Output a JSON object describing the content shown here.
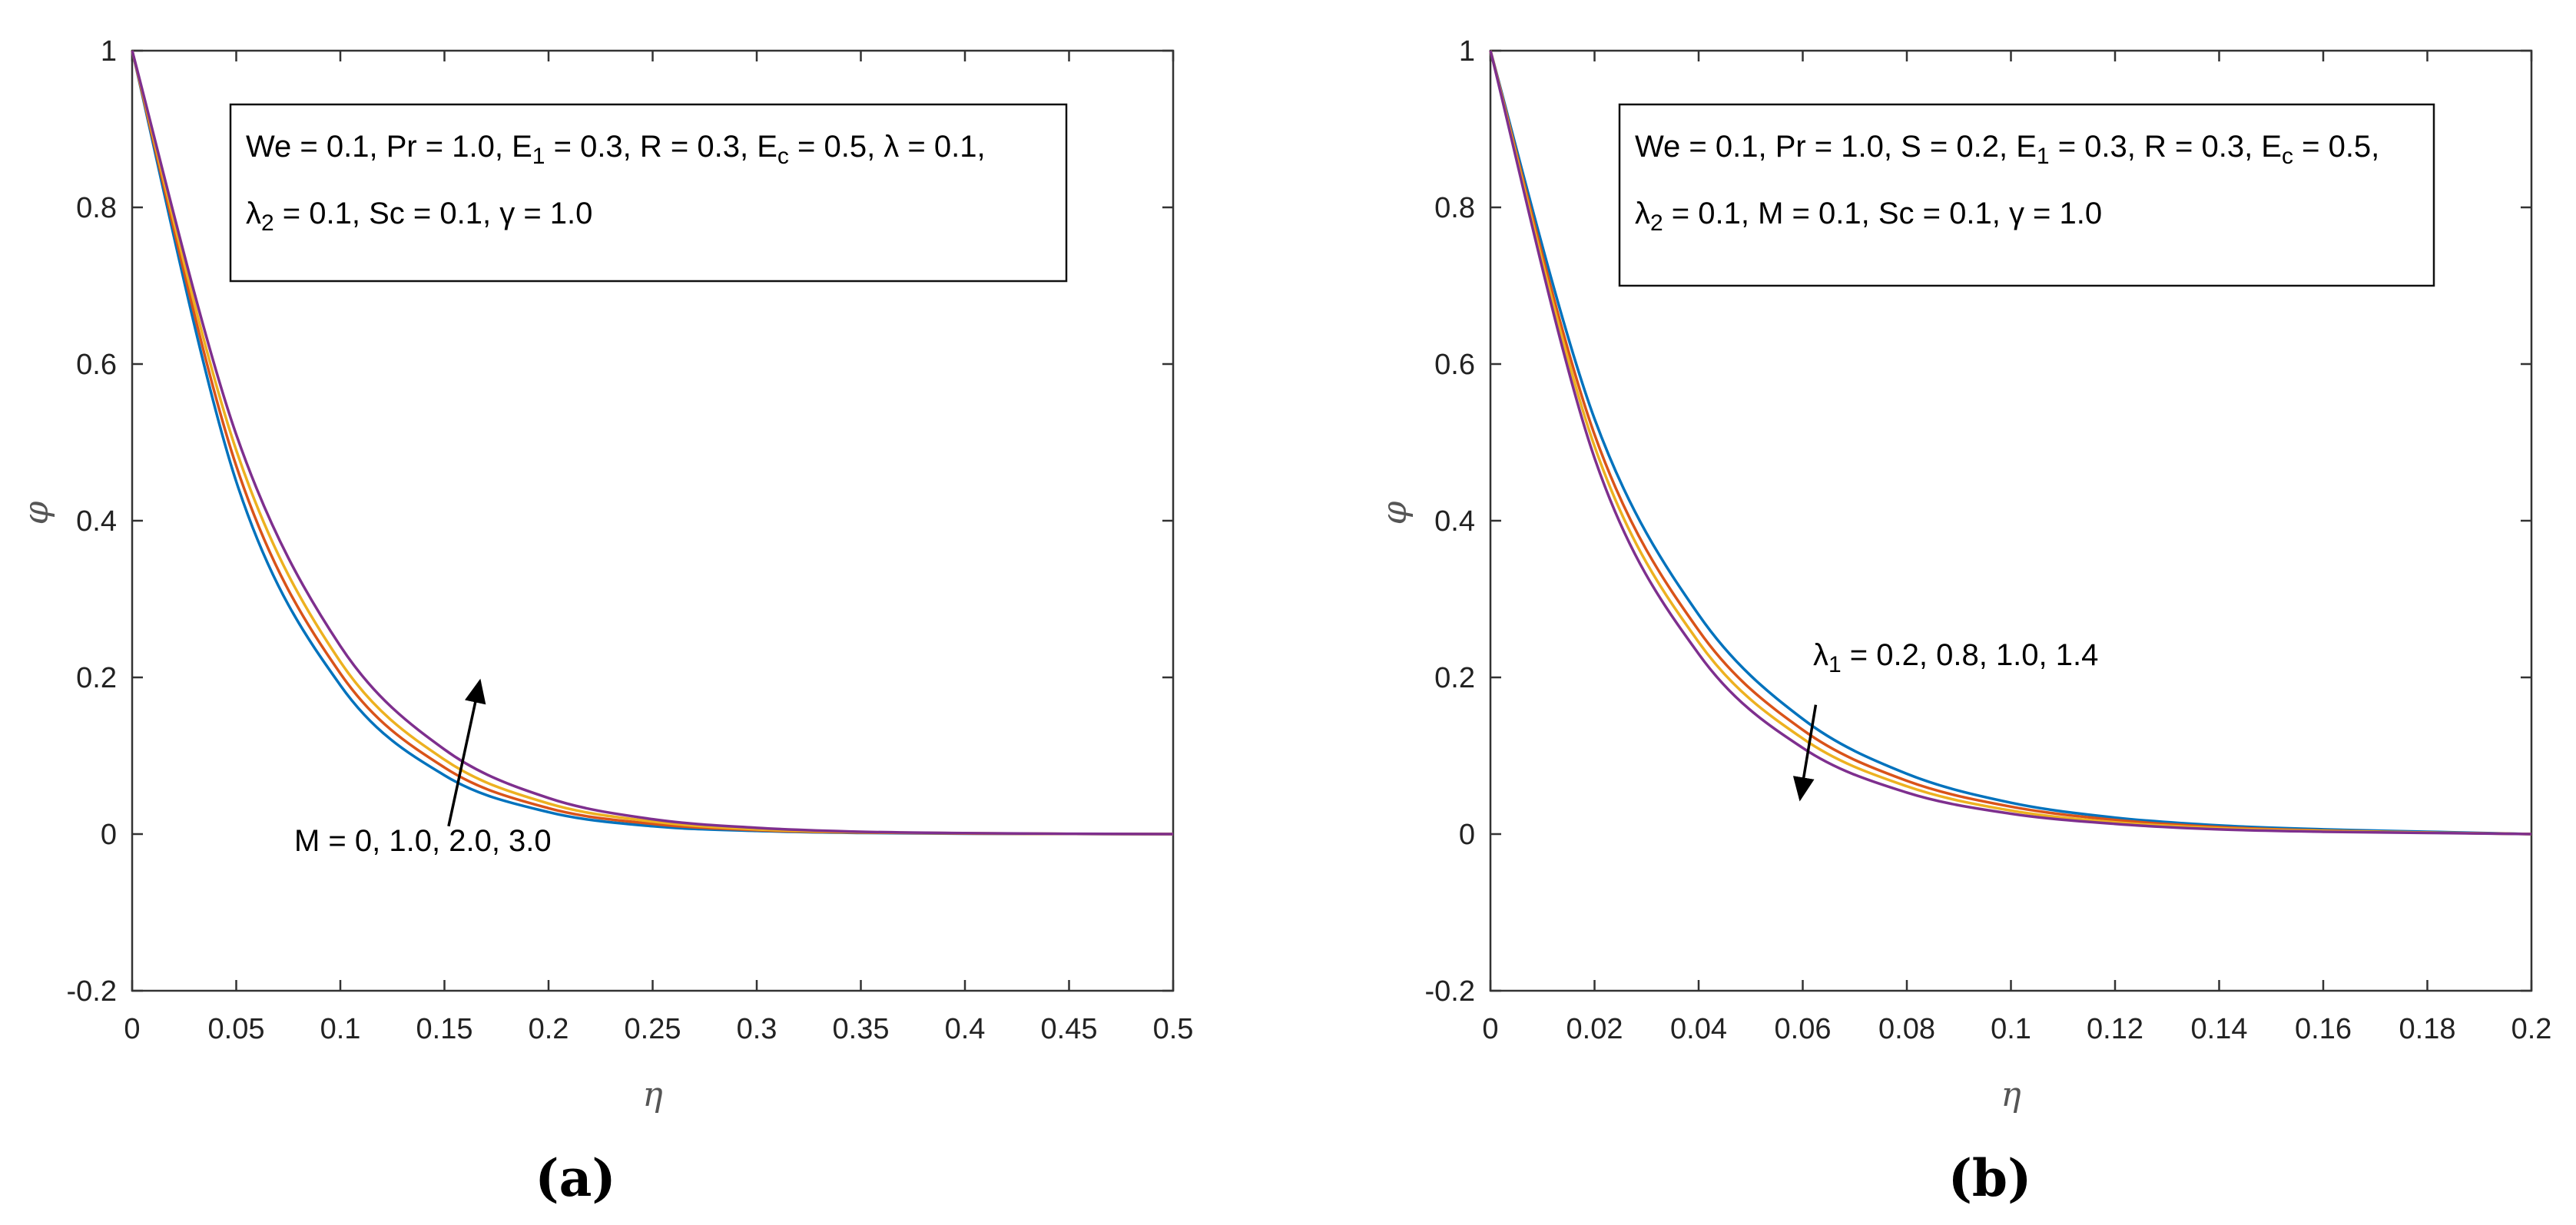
{
  "chart_data": [
    {
      "type": "line",
      "caption": "(a)",
      "xlabel": "η",
      "ylabel": "φ",
      "xlim": [
        0,
        0.5
      ],
      "ylim": [
        -0.2,
        1
      ],
      "xticks": [
        0,
        0.05,
        0.1,
        0.15,
        0.2,
        0.25,
        0.3,
        0.35,
        0.4,
        0.45,
        0.5
      ],
      "xtick_labels": [
        "0",
        "0.05",
        "0.1",
        "0.15",
        "0.2",
        "0.25",
        "0.3",
        "0.35",
        "0.4",
        "0.45",
        "0.5"
      ],
      "yticks": [
        -0.2,
        0,
        0.2,
        0.4,
        0.6,
        0.8,
        1
      ],
      "ytick_labels": [
        "-0.2",
        "0",
        "0.2",
        "0.4",
        "0.6",
        "0.8",
        "1"
      ],
      "x": [
        0,
        0.05,
        0.1,
        0.15,
        0.2,
        0.25,
        0.3,
        0.35,
        0.4,
        0.45,
        0.5
      ],
      "series": [
        {
          "color": "#0072BD",
          "values": [
            1.0,
            0.45,
            0.19,
            0.075,
            0.028,
            0.01,
            0.004,
            0.0015,
            0.0005,
            0.0002,
            0.0
          ]
        },
        {
          "color": "#D95319",
          "values": [
            1.0,
            0.47,
            0.205,
            0.085,
            0.033,
            0.013,
            0.005,
            0.002,
            0.0007,
            0.0002,
            0.0
          ]
        },
        {
          "color": "#EDB120",
          "values": [
            1.0,
            0.49,
            0.22,
            0.095,
            0.039,
            0.016,
            0.006,
            0.0025,
            0.001,
            0.0003,
            0.0
          ]
        },
        {
          "color": "#7E2F8E",
          "values": [
            1.0,
            0.51,
            0.24,
            0.108,
            0.046,
            0.019,
            0.008,
            0.003,
            0.0012,
            0.0004,
            0.0
          ]
        }
      ],
      "legend_box": {
        "line1": [
          {
            "t": "We = 0.1, Pr = 1.0, E"
          },
          {
            "t": "1",
            "sub": true
          },
          {
            "t": " = 0.3, R = 0.3, E"
          },
          {
            "t": "c",
            "sub": true
          },
          {
            "t": " = 0.5, λ = 0.1,"
          }
        ],
        "line2": [
          {
            "t": "λ"
          },
          {
            "t": "2",
            "sub": true
          },
          {
            "t": " = 0.1, Sc = 0.1, γ = 1.0"
          }
        ]
      },
      "annotation": {
        "parts": [
          {
            "t": "M = 0, 1.0, 2.0, 3.0"
          }
        ],
        "arrow_from": [
          0.152,
          0.01
        ],
        "arrow_to": [
          0.167,
          0.195
        ]
      }
    },
    {
      "type": "line",
      "caption": "(b)",
      "xlabel": "η",
      "ylabel": "φ",
      "xlim": [
        0,
        0.2
      ],
      "ylim": [
        -0.2,
        1
      ],
      "xticks": [
        0,
        0.02,
        0.04,
        0.06,
        0.08,
        0.1,
        0.12,
        0.14,
        0.16,
        0.18,
        0.2
      ],
      "xtick_labels": [
        "0",
        "0.02",
        "0.04",
        "0.06",
        "0.08",
        "0.1",
        "0.12",
        "0.14",
        "0.16",
        "0.18",
        "0.2"
      ],
      "yticks": [
        -0.2,
        0,
        0.2,
        0.4,
        0.6,
        0.8,
        1
      ],
      "ytick_labels": [
        "-0.2",
        "0",
        "0.2",
        "0.4",
        "0.6",
        "0.8",
        "1"
      ],
      "x": [
        0,
        0.02,
        0.04,
        0.06,
        0.08,
        0.1,
        0.12,
        0.14,
        0.16,
        0.18,
        0.2
      ],
      "series": [
        {
          "color": "#0072BD",
          "values": [
            1.0,
            0.53,
            0.28,
            0.147,
            0.077,
            0.04,
            0.021,
            0.011,
            0.006,
            0.003,
            0.0
          ]
        },
        {
          "color": "#D95319",
          "values": [
            1.0,
            0.51,
            0.26,
            0.133,
            0.068,
            0.035,
            0.018,
            0.009,
            0.0045,
            0.002,
            0.0
          ]
        },
        {
          "color": "#EDB120",
          "values": [
            1.0,
            0.495,
            0.245,
            0.122,
            0.061,
            0.03,
            0.015,
            0.0075,
            0.004,
            0.002,
            0.0
          ]
        },
        {
          "color": "#7E2F8E",
          "values": [
            1.0,
            0.48,
            0.23,
            0.11,
            0.053,
            0.026,
            0.013,
            0.006,
            0.003,
            0.0015,
            0.0
          ]
        }
      ],
      "legend_box": {
        "line1": [
          {
            "t": "We = 0.1, Pr = 1.0, S = 0.2, E"
          },
          {
            "t": "1",
            "sub": true
          },
          {
            "t": " = 0.3, R = 0.3, E"
          },
          {
            "t": "c",
            "sub": true
          },
          {
            "t": " = 0.5,"
          }
        ],
        "line2": [
          {
            "t": "λ"
          },
          {
            "t": "2",
            "sub": true
          },
          {
            "t": " = 0.1, M = 0.1, Sc = 0.1, γ = 1.0"
          }
        ]
      },
      "annotation": {
        "parts": [
          {
            "t": "λ"
          },
          {
            "t": "1",
            "sub": true
          },
          {
            "t": " = 0.2, 0.8, 1.0, 1.4"
          }
        ],
        "arrow_from": [
          0.0625,
          0.165
        ],
        "arrow_to": [
          0.0595,
          0.045
        ]
      }
    }
  ]
}
